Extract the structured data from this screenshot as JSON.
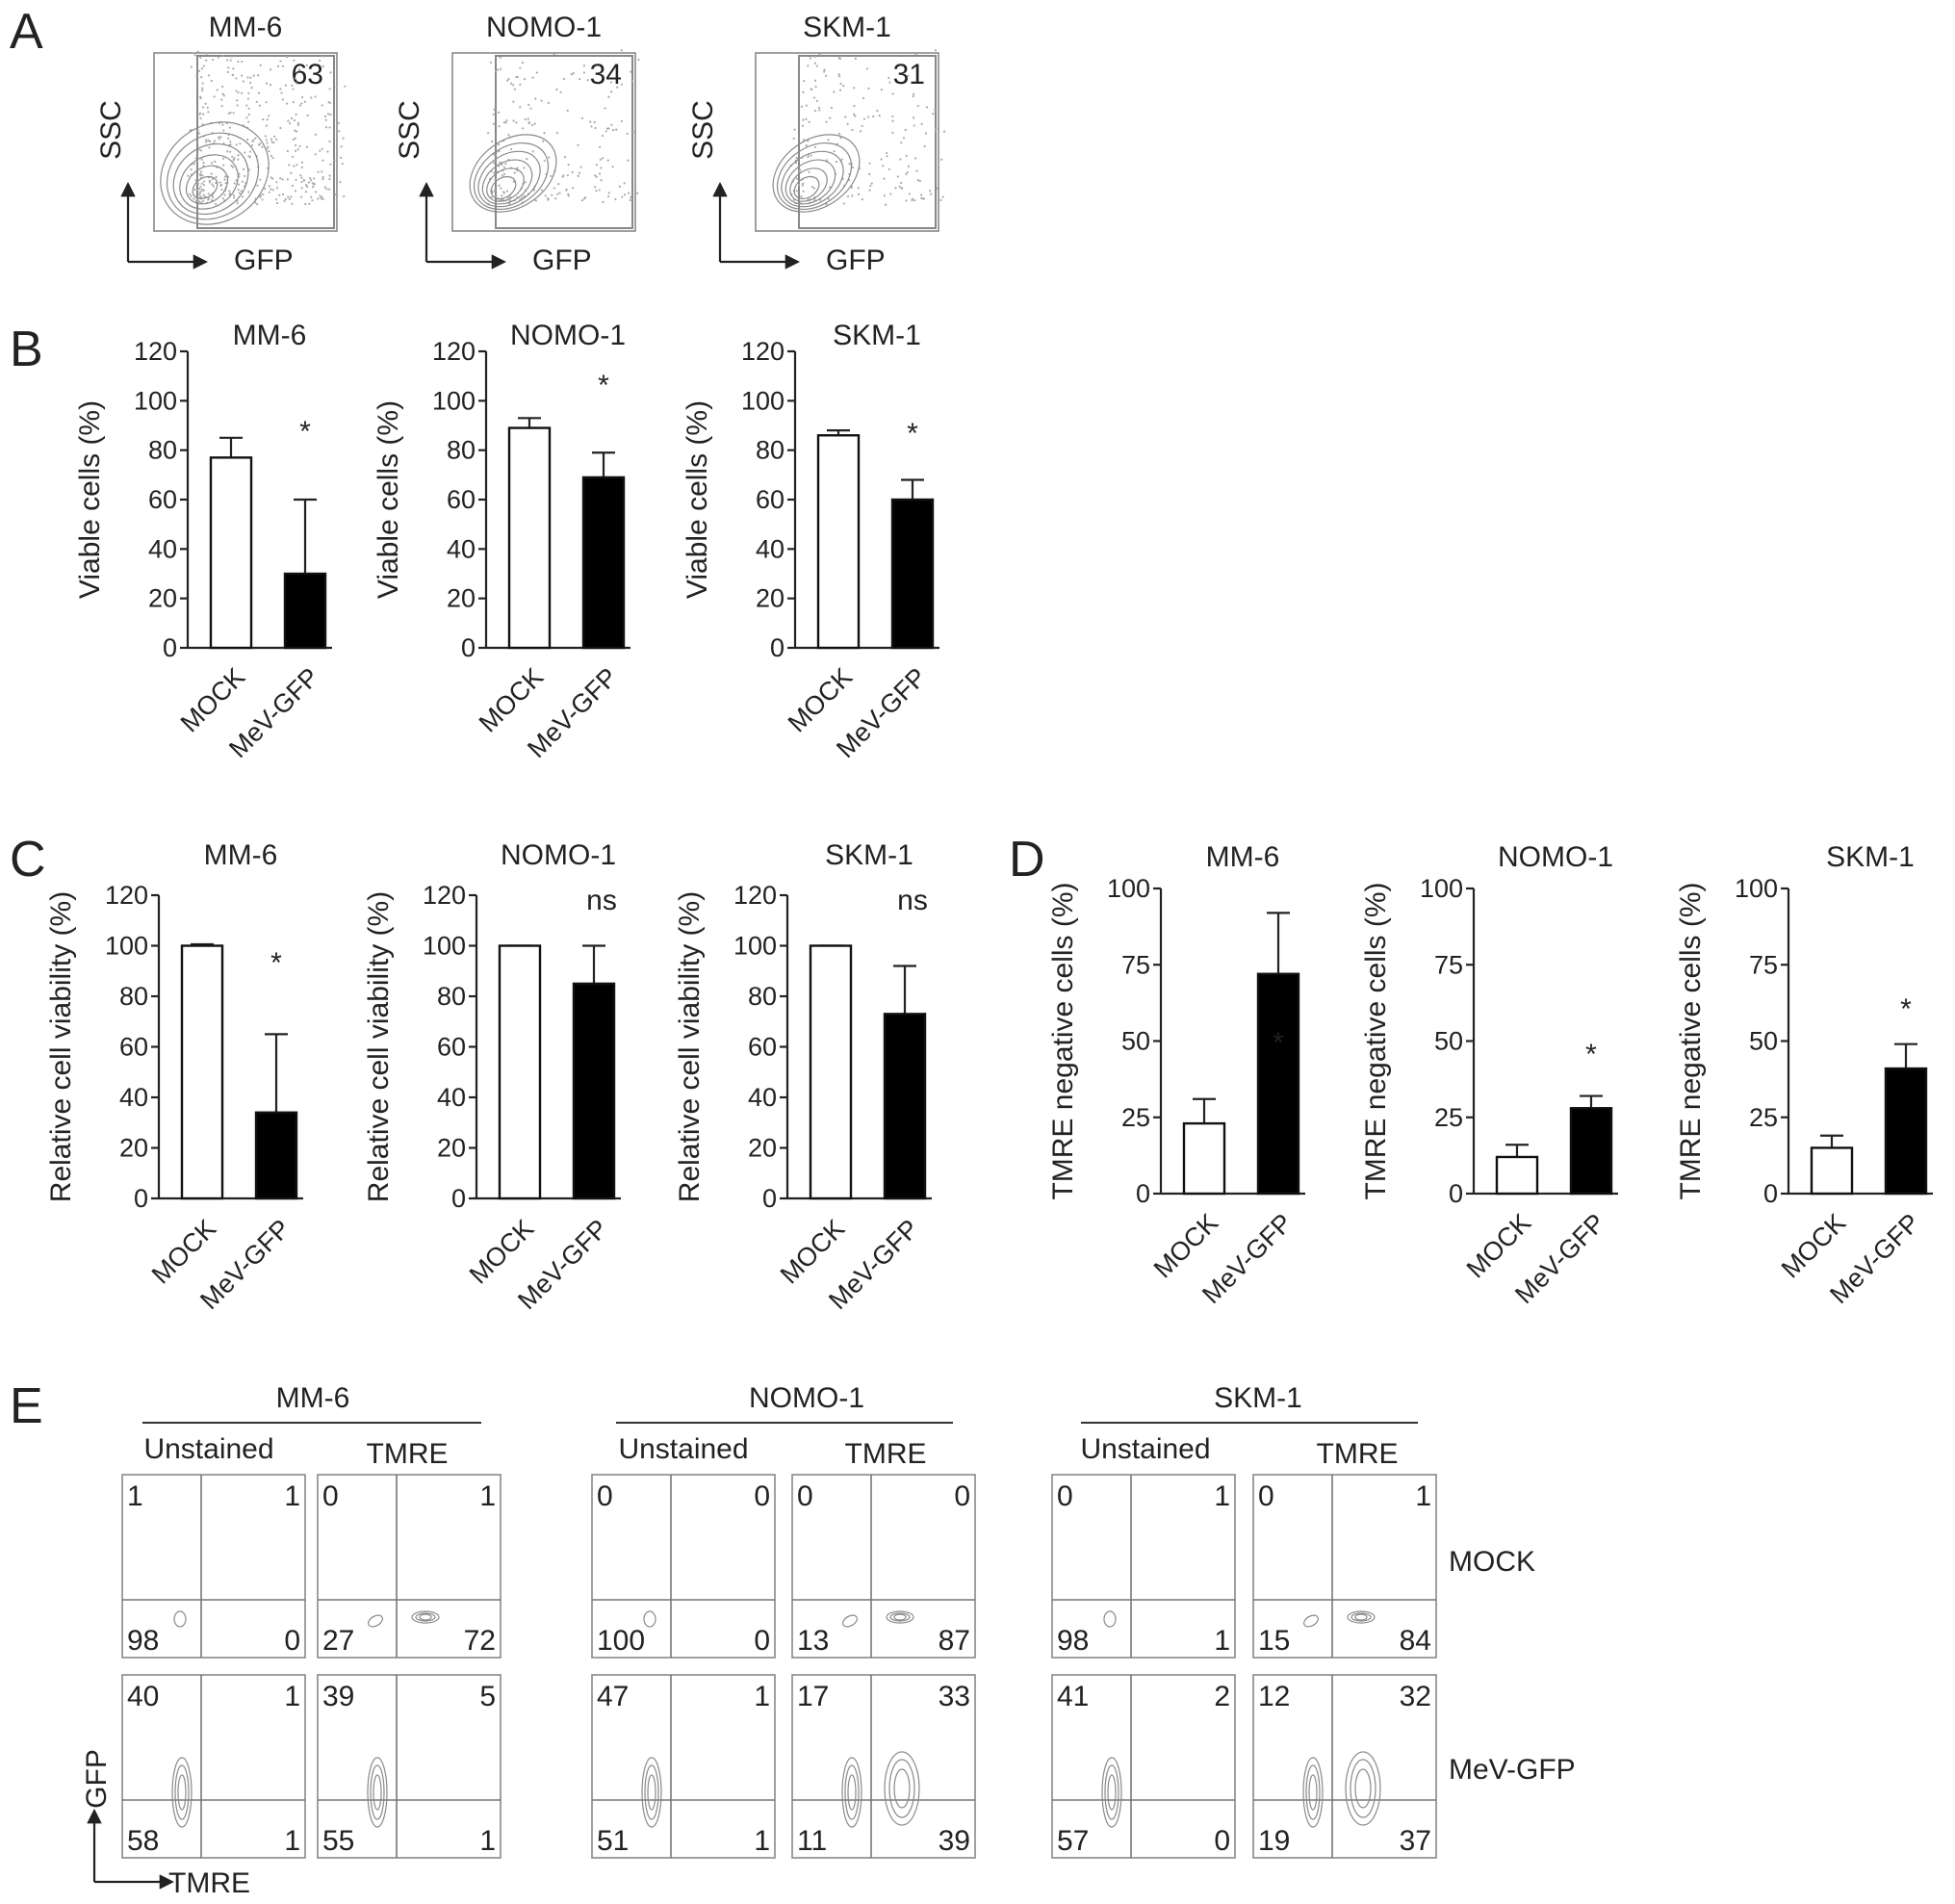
{
  "panels": {
    "A": "A",
    "B": "B",
    "C": "C",
    "D": "D",
    "E": "E"
  },
  "panel_a": {
    "ylabel": "SSC",
    "xlabel": "GFP",
    "plots": [
      {
        "title": "MM-6",
        "gate_value": "63"
      },
      {
        "title": "NOMO-1",
        "gate_value": "34"
      },
      {
        "title": "SKM-1",
        "gate_value": "31"
      }
    ]
  },
  "chart_data": [
    {
      "panel": "B",
      "type": "bar",
      "title": "MM-6",
      "categories": [
        "MOCK",
        "MeV-GFP"
      ],
      "values": [
        77,
        30
      ],
      "errors": [
        8,
        30
      ],
      "fills": [
        "#ffffff",
        "#000000"
      ],
      "significance": "*",
      "ylabel": "Viable cells (%)",
      "ylim": [
        0,
        120
      ],
      "yticks": [
        "0",
        "20",
        "40",
        "60",
        "80",
        "100",
        "120"
      ]
    },
    {
      "panel": "B",
      "type": "bar",
      "title": "NOMO-1",
      "categories": [
        "MOCK",
        "MeV-GFP"
      ],
      "values": [
        89,
        69
      ],
      "errors": [
        4,
        10
      ],
      "fills": [
        "#ffffff",
        "#000000"
      ],
      "significance": "*",
      "ylabel": "Viable cells (%)",
      "ylim": [
        0,
        120
      ],
      "yticks": [
        "0",
        "20",
        "40",
        "60",
        "80",
        "100",
        "120"
      ]
    },
    {
      "panel": "B",
      "type": "bar",
      "title": "SKM-1",
      "categories": [
        "MOCK",
        "MeV-GFP"
      ],
      "values": [
        86,
        60
      ],
      "errors": [
        2,
        8
      ],
      "fills": [
        "#ffffff",
        "#000000"
      ],
      "significance": "*",
      "ylabel": "Viable cells (%)",
      "ylim": [
        0,
        120
      ],
      "yticks": [
        "0",
        "20",
        "40",
        "60",
        "80",
        "100",
        "120"
      ]
    },
    {
      "panel": "C",
      "type": "bar",
      "title": "MM-6",
      "categories": [
        "MOCK",
        "MeV-GFP"
      ],
      "values": [
        100,
        34
      ],
      "errors": [
        0.6,
        31
      ],
      "fills": [
        "#ffffff",
        "#000000"
      ],
      "significance": "*",
      "ylabel": "Relative cell viability (%)",
      "ylim": [
        0,
        120
      ],
      "yticks": [
        "0",
        "20",
        "40",
        "60",
        "80",
        "100",
        "120"
      ]
    },
    {
      "panel": "C",
      "type": "bar",
      "title": "NOMO-1",
      "categories": [
        "MOCK",
        "MeV-GFP"
      ],
      "values": [
        100,
        85
      ],
      "errors": [
        0,
        15
      ],
      "fills": [
        "#ffffff",
        "#000000"
      ],
      "significance": "ns",
      "ylabel": "Relative cell viability (%)",
      "ylim": [
        0,
        120
      ],
      "yticks": [
        "0",
        "20",
        "40",
        "60",
        "80",
        "100",
        "120"
      ]
    },
    {
      "panel": "C",
      "type": "bar",
      "title": "SKM-1",
      "categories": [
        "MOCK",
        "MeV-GFP"
      ],
      "values": [
        100,
        73
      ],
      "errors": [
        0,
        19
      ],
      "fills": [
        "#ffffff",
        "#000000"
      ],
      "significance": "ns",
      "ylabel": "Relative cell viability (%)",
      "ylim": [
        0,
        120
      ],
      "yticks": [
        "0",
        "20",
        "40",
        "60",
        "80",
        "100",
        "120"
      ]
    },
    {
      "panel": "D",
      "type": "bar",
      "title": "MM-6",
      "categories": [
        "MOCK",
        "MeV-GFP"
      ],
      "values": [
        23,
        72
      ],
      "errors": [
        8,
        20
      ],
      "fills": [
        "#ffffff",
        "#000000"
      ],
      "significance": "*",
      "ylabel": "TMRE negative cells (%)",
      "ylim": [
        0,
        100
      ],
      "yticks": [
        "0",
        "25",
        "50",
        "75",
        "100"
      ]
    },
    {
      "panel": "D",
      "type": "bar",
      "title": "NOMO-1",
      "categories": [
        "MOCK",
        "MeV-GFP"
      ],
      "values": [
        12,
        28
      ],
      "errors": [
        4,
        4
      ],
      "fills": [
        "#ffffff",
        "#000000"
      ],
      "significance": "*",
      "ylabel": "TMRE negative cells (%)",
      "ylim": [
        0,
        100
      ],
      "yticks": [
        "0",
        "25",
        "50",
        "75",
        "100"
      ]
    },
    {
      "panel": "D",
      "type": "bar",
      "title": "SKM-1",
      "categories": [
        "MOCK",
        "MeV-GFP"
      ],
      "values": [
        15,
        41
      ],
      "errors": [
        4,
        8
      ],
      "fills": [
        "#ffffff",
        "#000000"
      ],
      "significance": "*",
      "ylabel": "TMRE negative cells (%)",
      "ylim": [
        0,
        100
      ],
      "yticks": [
        "0",
        "25",
        "50",
        "75",
        "100"
      ]
    }
  ],
  "panel_e": {
    "ylabel": "GFP",
    "xlabel": "TMRE",
    "row_labels": [
      "MOCK",
      "MeV-GFP"
    ],
    "groups": [
      {
        "title": "MM-6",
        "columns": [
          "Unstained",
          "TMRE"
        ],
        "quadrants": [
          [
            [
              "1",
              "1",
              "98",
              "0"
            ],
            [
              "0",
              "1",
              "27",
              "72"
            ]
          ],
          [
            [
              "40",
              "1",
              "58",
              "1"
            ],
            [
              "39",
              "5",
              "55",
              "1"
            ]
          ]
        ]
      },
      {
        "title": "NOMO-1",
        "columns": [
          "Unstained",
          "TMRE"
        ],
        "quadrants": [
          [
            [
              "0",
              "0",
              "100",
              "0"
            ],
            [
              "0",
              "0",
              "13",
              "87"
            ]
          ],
          [
            [
              "47",
              "1",
              "51",
              "1"
            ],
            [
              "17",
              "33",
              "11",
              "39"
            ]
          ]
        ]
      },
      {
        "title": "SKM-1",
        "columns": [
          "Unstained",
          "TMRE"
        ],
        "quadrants": [
          [
            [
              "0",
              "1",
              "98",
              "1"
            ],
            [
              "0",
              "1",
              "15",
              "84"
            ]
          ],
          [
            [
              "41",
              "2",
              "57",
              "0"
            ],
            [
              "12",
              "32",
              "19",
              "37"
            ]
          ]
        ]
      }
    ]
  }
}
